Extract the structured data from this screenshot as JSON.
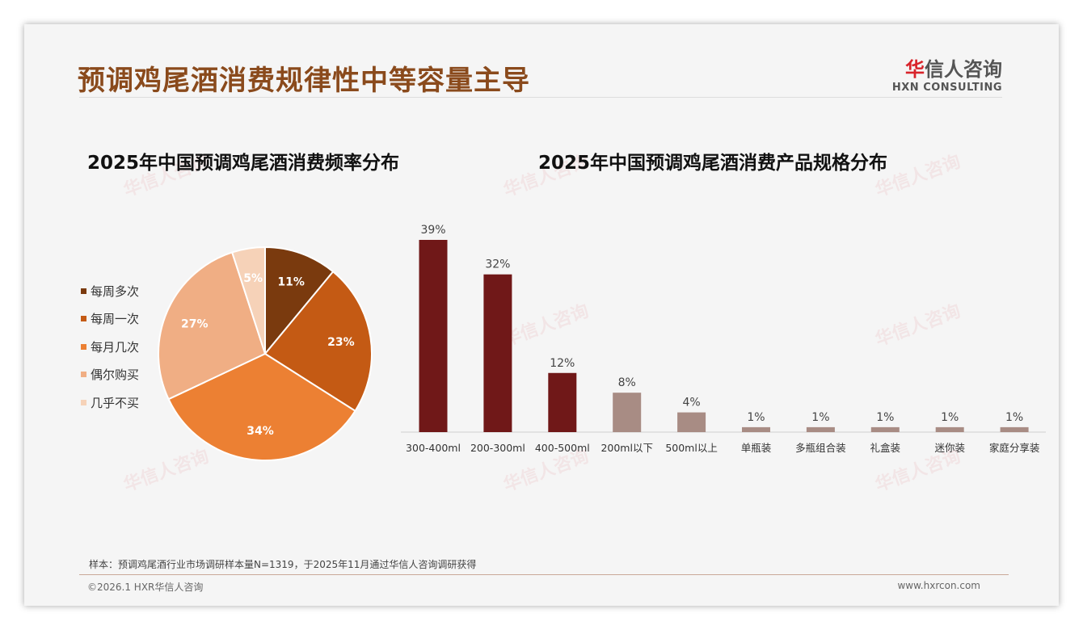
{
  "header": {
    "title": "预调鸡尾酒消费规律性中等容量主导",
    "logo_cn_accent": "华",
    "logo_cn_rest": "信人咨询",
    "logo_en": "HXN CONSULTING"
  },
  "footer": {
    "note": "样本：预调鸡尾酒行业市场调研样本量N=1319，于2025年11月通过华信人咨询调研获得",
    "copyright": "©2026.1 HXR华信人咨询",
    "url": "www.hxrcon.com"
  },
  "chart_data": [
    {
      "type": "pie",
      "title": "2025年中国预调鸡尾酒消费频率分布",
      "legend_position": "left",
      "labels": [
        "每周多次",
        "每周一次",
        "每月几次",
        "偶尔购买",
        "几乎不买"
      ],
      "values": [
        11,
        23,
        34,
        27,
        5
      ],
      "data_labels": [
        "11%",
        "23%",
        "34%",
        "27%",
        "5%"
      ],
      "colors": [
        "#7a3a0e",
        "#c45a14",
        "#ec8033",
        "#f0ae84",
        "#f6d2b8"
      ]
    },
    {
      "type": "bar",
      "title": "2025年中国预调鸡尾酒消费产品规格分布",
      "categories": [
        "300-400ml",
        "200-300ml",
        "400-500ml",
        "200ml以下",
        "500ml以上",
        "单瓶装",
        "多瓶组合装",
        "礼盒装",
        "迷你装",
        "家庭分享装"
      ],
      "values": [
        39,
        32,
        12,
        8,
        4,
        1,
        1,
        1,
        1,
        1
      ],
      "data_labels": [
        "39%",
        "32%",
        "12%",
        "8%",
        "4%",
        "1%",
        "1%",
        "1%",
        "1%",
        "1%"
      ],
      "colors": [
        "#701818",
        "#701818",
        "#701818",
        "#a88c84",
        "#a88c84",
        "#a88c84",
        "#a88c84",
        "#a88c84",
        "#a88c84",
        "#a88c84"
      ],
      "ylim": [
        0,
        40
      ]
    }
  ]
}
